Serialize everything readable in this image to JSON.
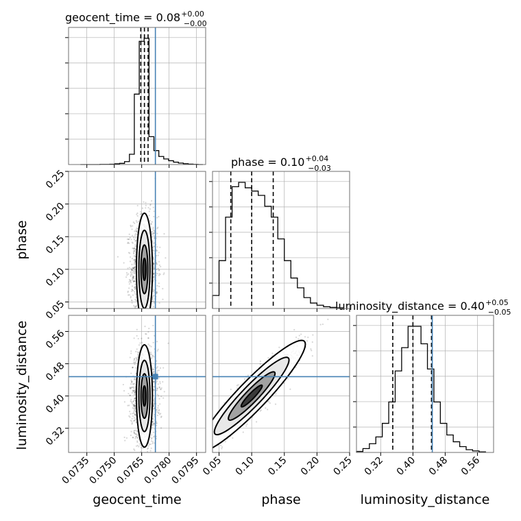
{
  "chart_data": {
    "type": "corner",
    "parameters": [
      {
        "key": "geocent_time",
        "axis_label": "geocent_time",
        "title": {
          "text": "geocent_time = 0.08",
          "sup": "+0.00",
          "sub": "−0.00"
        },
        "range": [
          0.0725,
          0.08
        ],
        "ticks": [
          0.0735,
          0.075,
          0.0765,
          0.078,
          0.0795
        ],
        "tick_labels": [
          "0.0735",
          "0.0750",
          "0.0765",
          "0.0780",
          "0.0795"
        ],
        "quantiles": [
          0.07645,
          0.07665,
          0.07685
        ],
        "truth": 0.07725,
        "hist_edges_range": [
          0.07315,
          0.07985
        ],
        "hist_counts": [
          0,
          0,
          0,
          0,
          1,
          1,
          2,
          5,
          8,
          20,
          70,
          480,
          840,
          860,
          190,
          95,
          55,
          38,
          26,
          16,
          10,
          6,
          3,
          1,
          0
        ]
      },
      {
        "key": "phase",
        "axis_label": "phase",
        "title": {
          "text": "phase = 0.10",
          "sup": "+0.04",
          "sub": "−0.03"
        },
        "range": [
          0.04,
          0.25
        ],
        "ticks": [
          0.05,
          0.1,
          0.15,
          0.2,
          0.25
        ],
        "tick_labels": [
          "0.05",
          "0.10",
          "0.15",
          "0.20",
          "0.25"
        ],
        "quantiles": [
          0.068,
          0.1,
          0.133
        ],
        "truth": null,
        "hist_edges_range": [
          0.04,
          0.24
        ],
        "hist_counts": [
          60,
          220,
          420,
          560,
          580,
          555,
          540,
          520,
          470,
          420,
          320,
          220,
          140,
          95,
          50,
          25,
          15,
          8,
          5,
          3
        ]
      },
      {
        "key": "luminosity_distance",
        "axis_label": "luminosity_distance",
        "title": {
          "text": "luminosity_distance = 0.40",
          "sup": "+0.05",
          "sub": "−0.05"
        },
        "range": [
          0.26,
          0.6
        ],
        "ticks": [
          0.32,
          0.4,
          0.48,
          0.56
        ],
        "tick_labels": [
          "0.32",
          "0.40",
          "0.48",
          "0.56"
        ],
        "quantiles": [
          0.35,
          0.4,
          0.446
        ],
        "truth": 0.448,
        "hist_edges_range": [
          0.26,
          0.58
        ],
        "hist_counts": [
          5,
          20,
          45,
          80,
          150,
          260,
          420,
          540,
          650,
          650,
          560,
          430,
          260,
          150,
          90,
          55,
          30,
          14,
          8,
          3
        ]
      }
    ],
    "pairs": [
      {
        "x": "geocent_time",
        "y": "phase",
        "y_ticks": [
          0.05,
          0.1,
          0.15,
          0.2,
          0.25
        ],
        "y_tick_labels": [
          "0.05",
          "0.10",
          "0.15",
          "0.20",
          "0.25"
        ]
      },
      {
        "x": "geocent_time",
        "y": "luminosity_distance",
        "y_ticks": [
          0.32,
          0.4,
          0.48,
          0.56
        ],
        "y_tick_labels": [
          "0.32",
          "0.40",
          "0.48",
          "0.56"
        ]
      },
      {
        "x": "phase",
        "y": "luminosity_distance"
      }
    ],
    "truth_point": {
      "geocent_time": 0.07725,
      "luminosity_distance": 0.448
    },
    "grid": true,
    "colors": {
      "histogram": "#000000",
      "truth": "#4682b4",
      "samples": "#000000",
      "frame": "#6f6f6f"
    }
  }
}
